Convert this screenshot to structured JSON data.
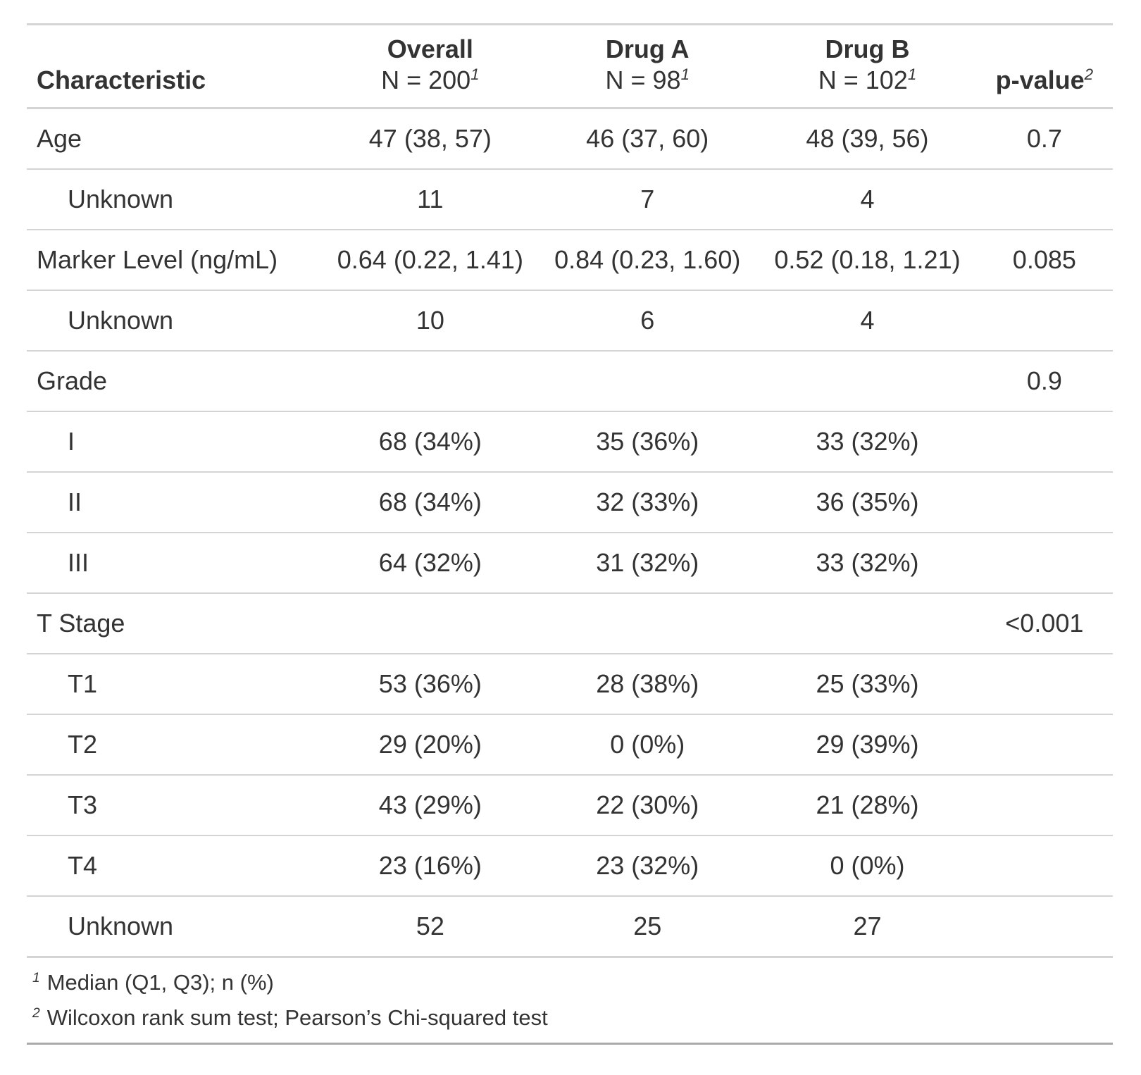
{
  "chart_data": {
    "type": "table",
    "columns": [
      {
        "id": "label",
        "title": "Characteristic"
      },
      {
        "id": "overall",
        "title": "Overall",
        "subtitle": "N = 200",
        "footnote_mark": "1"
      },
      {
        "id": "drug_a",
        "title": "Drug A",
        "subtitle": "N = 98",
        "footnote_mark": "1"
      },
      {
        "id": "drug_b",
        "title": "Drug B",
        "subtitle": "N = 102",
        "footnote_mark": "1"
      },
      {
        "id": "p_value",
        "title": "p-value",
        "footnote_mark": "2"
      }
    ],
    "rows": [
      {
        "label": "Age",
        "indent": false,
        "overall": "47 (38, 57)",
        "drug_a": "46 (37, 60)",
        "drug_b": "48 (39, 56)",
        "p_value": "0.7"
      },
      {
        "label": "Unknown",
        "indent": true,
        "overall": "11",
        "drug_a": "7",
        "drug_b": "4",
        "p_value": ""
      },
      {
        "label": "Marker Level (ng/mL)",
        "indent": false,
        "overall": "0.64 (0.22, 1.41)",
        "drug_a": "0.84 (0.23, 1.60)",
        "drug_b": "0.52 (0.18, 1.21)",
        "p_value": "0.085"
      },
      {
        "label": "Unknown",
        "indent": true,
        "overall": "10",
        "drug_a": "6",
        "drug_b": "4",
        "p_value": ""
      },
      {
        "label": "Grade",
        "indent": false,
        "overall": "",
        "drug_a": "",
        "drug_b": "",
        "p_value": "0.9"
      },
      {
        "label": "I",
        "indent": true,
        "overall": "68 (34%)",
        "drug_a": "35 (36%)",
        "drug_b": "33 (32%)",
        "p_value": ""
      },
      {
        "label": "II",
        "indent": true,
        "overall": "68 (34%)",
        "drug_a": "32 (33%)",
        "drug_b": "36 (35%)",
        "p_value": ""
      },
      {
        "label": "III",
        "indent": true,
        "overall": "64 (32%)",
        "drug_a": "31 (32%)",
        "drug_b": "33 (32%)",
        "p_value": ""
      },
      {
        "label": "T Stage",
        "indent": false,
        "overall": "",
        "drug_a": "",
        "drug_b": "",
        "p_value": "<0.001"
      },
      {
        "label": "T1",
        "indent": true,
        "overall": "53 (36%)",
        "drug_a": "28 (38%)",
        "drug_b": "25 (33%)",
        "p_value": ""
      },
      {
        "label": "T2",
        "indent": true,
        "overall": "29 (20%)",
        "drug_a": "0 (0%)",
        "drug_b": "29 (39%)",
        "p_value": ""
      },
      {
        "label": "T3",
        "indent": true,
        "overall": "43 (29%)",
        "drug_a": "22 (30%)",
        "drug_b": "21 (28%)",
        "p_value": ""
      },
      {
        "label": "T4",
        "indent": true,
        "overall": "23 (16%)",
        "drug_a": "23 (32%)",
        "drug_b": "0 (0%)",
        "p_value": ""
      },
      {
        "label": "Unknown",
        "indent": true,
        "overall": "52",
        "drug_a": "25",
        "drug_b": "27",
        "p_value": ""
      }
    ],
    "footnotes": [
      {
        "mark": "1",
        "text": "Median (Q1, Q3); n (%)"
      },
      {
        "mark": "2",
        "text": "Wilcoxon rank sum test; Pearson’s Chi-squared test"
      }
    ]
  },
  "colors": {
    "text": "#333333",
    "border_light": "#D4D4D4",
    "border_dark": "#A9A9A9",
    "background": "#FFFFFF"
  }
}
